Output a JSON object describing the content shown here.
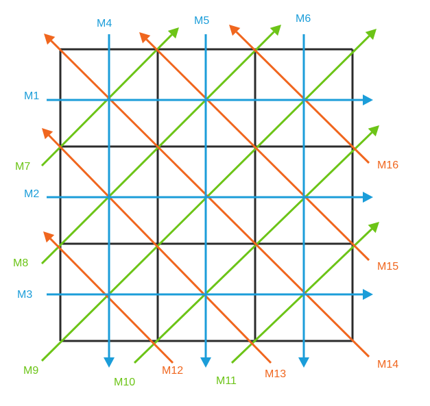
{
  "colors": {
    "grid": "#2b2b2b",
    "horizontal": "#1b9dd9",
    "vertical": "#1b9dd9",
    "rising_diagonal": "#6cc417",
    "falling_diagonal": "#f0661e"
  },
  "horizontal_labels": [
    "M1",
    "M2",
    "M3"
  ],
  "vertical_labels": [
    "M4",
    "M5",
    "M6"
  ],
  "rising_diagonal_labels": [
    "M7",
    "M8",
    "M9",
    "M10",
    "M11"
  ],
  "falling_diagonal_labels": [
    "M12",
    "M13",
    "M14",
    "M15",
    "M16"
  ]
}
